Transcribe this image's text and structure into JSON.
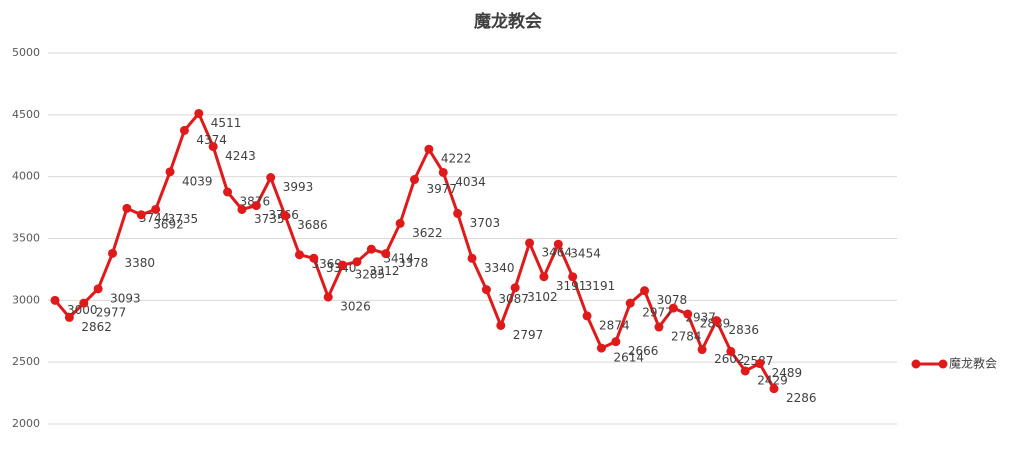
{
  "chart_data": {
    "type": "line",
    "title": "魔龙教会",
    "series": [
      {
        "name": "魔龙教会",
        "color": "#e0191b",
        "values": [
          3000,
          2862,
          2977,
          3093,
          3380,
          3744,
          3692,
          3735,
          4039,
          4374,
          4511,
          4243,
          3876,
          3735,
          3766,
          3993,
          3686,
          3369,
          3340,
          3026,
          3285,
          3312,
          3414,
          3378,
          3622,
          3977,
          4222,
          4034,
          3703,
          3340,
          3087,
          2797,
          3102,
          3464,
          3191,
          3454,
          3191,
          2874,
          2614,
          2666,
          2977,
          3078,
          2784,
          2937,
          2889,
          2602,
          2836,
          2587,
          2429,
          2489,
          2286
        ]
      }
    ],
    "ylim": [
      2000,
      5000
    ],
    "yticks": [
      2000,
      2500,
      3000,
      3500,
      4000,
      4500,
      5000
    ],
    "grid": true,
    "legend": "right"
  }
}
